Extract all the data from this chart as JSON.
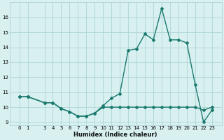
{
  "xlabel": "Humidex (Indice chaleur)",
  "x": [
    0,
    1,
    3,
    4,
    5,
    6,
    7,
    8,
    9,
    10,
    11,
    12,
    13,
    14,
    15,
    16,
    17,
    18,
    19,
    20,
    21,
    22,
    23
  ],
  "line1": [
    10.7,
    10.7,
    10.3,
    10.3,
    9.9,
    9.7,
    9.4,
    9.4,
    9.6,
    10.1,
    10.6,
    10.9,
    13.8,
    13.9,
    14.9,
    14.5,
    16.6,
    14.5,
    14.5,
    14.3,
    11.5,
    9.0,
    9.8
  ],
  "line2": [
    10.7,
    10.7,
    10.3,
    10.3,
    9.9,
    9.7,
    9.4,
    9.4,
    9.6,
    10.0,
    10.0,
    10.0,
    10.0,
    10.0,
    10.0,
    10.0,
    10.0,
    10.0,
    10.0,
    10.0,
    10.0,
    9.8,
    10.0
  ],
  "line_color": "#1a7a6e",
  "bg_color": "#d8f0f0",
  "grid_color": "#aed4d4",
  "ylim": [
    8.8,
    17.0
  ],
  "yticks": [
    9,
    10,
    11,
    12,
    13,
    14,
    15,
    16
  ],
  "xtick_labels": [
    "0",
    "1",
    "3",
    "4",
    "5",
    "6",
    "7",
    "8",
    "9",
    "10",
    "11",
    "12",
    "13",
    "14",
    "15",
    "16",
    "17",
    "18",
    "19",
    "20",
    "21",
    "22",
    "23"
  ],
  "marker": "D",
  "markersize": 2,
  "linewidth": 1.0,
  "tick_fontsize": 5.0,
  "xlabel_fontsize": 6.0
}
